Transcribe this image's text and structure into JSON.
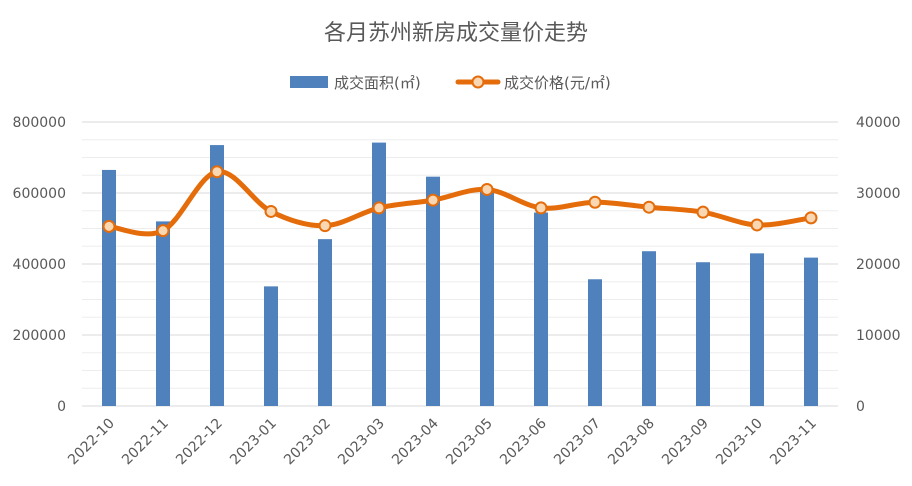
{
  "chart_data": {
    "type": "bar+line",
    "title": "各月苏州新房成交量价走势",
    "categories": [
      "2022-10",
      "2022-11",
      "2022-12",
      "2023-01",
      "2023-02",
      "2023-03",
      "2023-04",
      "2023-05",
      "2023-06",
      "2023-07",
      "2023-08",
      "2023-09",
      "2023-10",
      "2023-11"
    ],
    "series": [
      {
        "name": "成交面积(㎡)",
        "type": "bar",
        "axis": "left",
        "color": "#4F81BD",
        "values": [
          665000,
          520000,
          735000,
          337000,
          470000,
          742000,
          646000,
          610000,
          545000,
          357000,
          436000,
          405000,
          430000,
          418000
        ]
      },
      {
        "name": "成交价格(元/㎡)",
        "type": "line",
        "axis": "right",
        "color": "#E46C0A",
        "smooth": true,
        "values": [
          25300,
          24700,
          33000,
          27400,
          25400,
          27900,
          29000,
          30500,
          27900,
          28700,
          28000,
          27300,
          25500,
          26500
        ]
      }
    ],
    "yleft": {
      "ylim": [
        0,
        800000
      ],
      "ticks": [
        "0",
        "200000",
        "400000",
        "600000",
        "800000"
      ],
      "tickValues": [
        0,
        200000,
        400000,
        600000,
        800000
      ]
    },
    "yright": {
      "ylim": [
        0,
        40000
      ],
      "ticks": [
        "0",
        "10000",
        "20000",
        "30000",
        "40000"
      ],
      "tickValues": [
        0,
        10000,
        20000,
        30000,
        40000
      ]
    },
    "grid": true,
    "legend": "top-center"
  }
}
